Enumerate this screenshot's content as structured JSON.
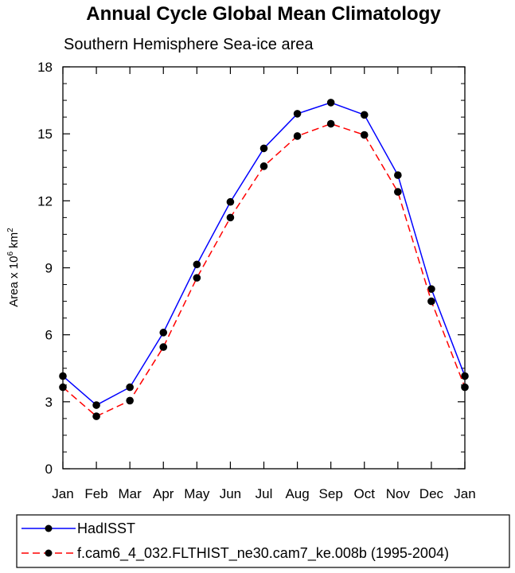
{
  "chart_data": {
    "type": "line",
    "title": "Annual Cycle Global Mean Climatology",
    "subtitle": "Southern Hemisphere Sea-ice area",
    "ylabel": "Area x 10^6 km^2",
    "ylabel_parts": {
      "prefix": "Area x 10",
      "exp1": "6",
      "mid": " km",
      "exp2": "2"
    },
    "categories": [
      "Jan",
      "Feb",
      "Mar",
      "Apr",
      "May",
      "Jun",
      "Jul",
      "Aug",
      "Sep",
      "Oct",
      "Nov",
      "Dec",
      "Jan"
    ],
    "ylim": [
      0,
      18
    ],
    "yticks": [
      0,
      3,
      6,
      9,
      12,
      15,
      18
    ],
    "series": [
      {
        "name": "HadISST",
        "color": "#0000ff",
        "dash": "solid",
        "values": [
          4.15,
          2.85,
          3.65,
          6.1,
          9.15,
          11.95,
          14.35,
          15.9,
          16.4,
          15.85,
          13.15,
          8.05,
          4.15
        ]
      },
      {
        "name": "f.cam6_4_032.FLTHIST_ne30.cam7_ke.008b (1995-2004)",
        "color": "#ff0000",
        "dash": "dashed",
        "values": [
          3.65,
          2.35,
          3.05,
          5.45,
          8.55,
          11.25,
          13.55,
          14.9,
          15.45,
          14.95,
          12.4,
          7.5,
          3.65
        ]
      }
    ],
    "legend_position": "bottom"
  }
}
